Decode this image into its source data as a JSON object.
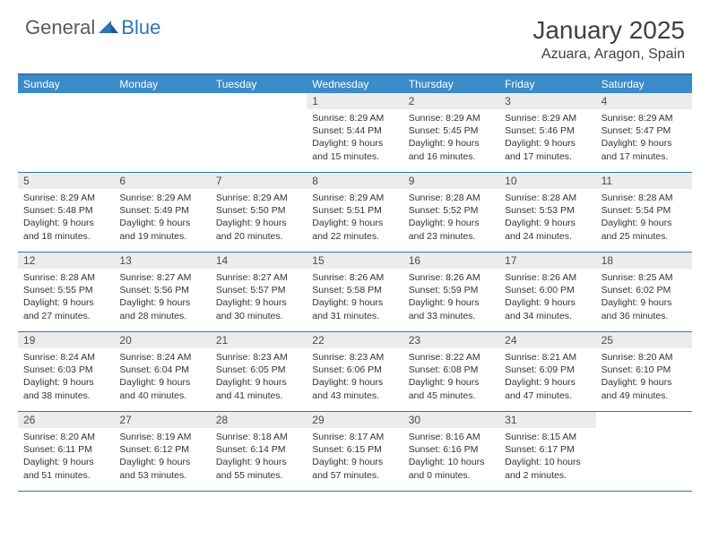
{
  "logo": {
    "general": "General",
    "blue": "Blue"
  },
  "title": "January 2025",
  "location": "Azuara, Aragon, Spain",
  "colors": {
    "header_bg": "#3b8bc9",
    "header_border": "#2e75b6",
    "row_border": "#2e75b6",
    "daynum_bg": "#ececec",
    "text": "#333333",
    "title_text": "#404040",
    "logo_gray": "#5a5a5a",
    "logo_blue": "#2e75b6"
  },
  "day_names": [
    "Sunday",
    "Monday",
    "Tuesday",
    "Wednesday",
    "Thursday",
    "Friday",
    "Saturday"
  ],
  "weeks": [
    [
      {
        "n": "",
        "sunrise": "",
        "sunset": "",
        "daylight": ""
      },
      {
        "n": "",
        "sunrise": "",
        "sunset": "",
        "daylight": ""
      },
      {
        "n": "",
        "sunrise": "",
        "sunset": "",
        "daylight": ""
      },
      {
        "n": "1",
        "sunrise": "Sunrise: 8:29 AM",
        "sunset": "Sunset: 5:44 PM",
        "daylight": "Daylight: 9 hours and 15 minutes."
      },
      {
        "n": "2",
        "sunrise": "Sunrise: 8:29 AM",
        "sunset": "Sunset: 5:45 PM",
        "daylight": "Daylight: 9 hours and 16 minutes."
      },
      {
        "n": "3",
        "sunrise": "Sunrise: 8:29 AM",
        "sunset": "Sunset: 5:46 PM",
        "daylight": "Daylight: 9 hours and 17 minutes."
      },
      {
        "n": "4",
        "sunrise": "Sunrise: 8:29 AM",
        "sunset": "Sunset: 5:47 PM",
        "daylight": "Daylight: 9 hours and 17 minutes."
      }
    ],
    [
      {
        "n": "5",
        "sunrise": "Sunrise: 8:29 AM",
        "sunset": "Sunset: 5:48 PM",
        "daylight": "Daylight: 9 hours and 18 minutes."
      },
      {
        "n": "6",
        "sunrise": "Sunrise: 8:29 AM",
        "sunset": "Sunset: 5:49 PM",
        "daylight": "Daylight: 9 hours and 19 minutes."
      },
      {
        "n": "7",
        "sunrise": "Sunrise: 8:29 AM",
        "sunset": "Sunset: 5:50 PM",
        "daylight": "Daylight: 9 hours and 20 minutes."
      },
      {
        "n": "8",
        "sunrise": "Sunrise: 8:29 AM",
        "sunset": "Sunset: 5:51 PM",
        "daylight": "Daylight: 9 hours and 22 minutes."
      },
      {
        "n": "9",
        "sunrise": "Sunrise: 8:28 AM",
        "sunset": "Sunset: 5:52 PM",
        "daylight": "Daylight: 9 hours and 23 minutes."
      },
      {
        "n": "10",
        "sunrise": "Sunrise: 8:28 AM",
        "sunset": "Sunset: 5:53 PM",
        "daylight": "Daylight: 9 hours and 24 minutes."
      },
      {
        "n": "11",
        "sunrise": "Sunrise: 8:28 AM",
        "sunset": "Sunset: 5:54 PM",
        "daylight": "Daylight: 9 hours and 25 minutes."
      }
    ],
    [
      {
        "n": "12",
        "sunrise": "Sunrise: 8:28 AM",
        "sunset": "Sunset: 5:55 PM",
        "daylight": "Daylight: 9 hours and 27 minutes."
      },
      {
        "n": "13",
        "sunrise": "Sunrise: 8:27 AM",
        "sunset": "Sunset: 5:56 PM",
        "daylight": "Daylight: 9 hours and 28 minutes."
      },
      {
        "n": "14",
        "sunrise": "Sunrise: 8:27 AM",
        "sunset": "Sunset: 5:57 PM",
        "daylight": "Daylight: 9 hours and 30 minutes."
      },
      {
        "n": "15",
        "sunrise": "Sunrise: 8:26 AM",
        "sunset": "Sunset: 5:58 PM",
        "daylight": "Daylight: 9 hours and 31 minutes."
      },
      {
        "n": "16",
        "sunrise": "Sunrise: 8:26 AM",
        "sunset": "Sunset: 5:59 PM",
        "daylight": "Daylight: 9 hours and 33 minutes."
      },
      {
        "n": "17",
        "sunrise": "Sunrise: 8:26 AM",
        "sunset": "Sunset: 6:00 PM",
        "daylight": "Daylight: 9 hours and 34 minutes."
      },
      {
        "n": "18",
        "sunrise": "Sunrise: 8:25 AM",
        "sunset": "Sunset: 6:02 PM",
        "daylight": "Daylight: 9 hours and 36 minutes."
      }
    ],
    [
      {
        "n": "19",
        "sunrise": "Sunrise: 8:24 AM",
        "sunset": "Sunset: 6:03 PM",
        "daylight": "Daylight: 9 hours and 38 minutes."
      },
      {
        "n": "20",
        "sunrise": "Sunrise: 8:24 AM",
        "sunset": "Sunset: 6:04 PM",
        "daylight": "Daylight: 9 hours and 40 minutes."
      },
      {
        "n": "21",
        "sunrise": "Sunrise: 8:23 AM",
        "sunset": "Sunset: 6:05 PM",
        "daylight": "Daylight: 9 hours and 41 minutes."
      },
      {
        "n": "22",
        "sunrise": "Sunrise: 8:23 AM",
        "sunset": "Sunset: 6:06 PM",
        "daylight": "Daylight: 9 hours and 43 minutes."
      },
      {
        "n": "23",
        "sunrise": "Sunrise: 8:22 AM",
        "sunset": "Sunset: 6:08 PM",
        "daylight": "Daylight: 9 hours and 45 minutes."
      },
      {
        "n": "24",
        "sunrise": "Sunrise: 8:21 AM",
        "sunset": "Sunset: 6:09 PM",
        "daylight": "Daylight: 9 hours and 47 minutes."
      },
      {
        "n": "25",
        "sunrise": "Sunrise: 8:20 AM",
        "sunset": "Sunset: 6:10 PM",
        "daylight": "Daylight: 9 hours and 49 minutes."
      }
    ],
    [
      {
        "n": "26",
        "sunrise": "Sunrise: 8:20 AM",
        "sunset": "Sunset: 6:11 PM",
        "daylight": "Daylight: 9 hours and 51 minutes."
      },
      {
        "n": "27",
        "sunrise": "Sunrise: 8:19 AM",
        "sunset": "Sunset: 6:12 PM",
        "daylight": "Daylight: 9 hours and 53 minutes."
      },
      {
        "n": "28",
        "sunrise": "Sunrise: 8:18 AM",
        "sunset": "Sunset: 6:14 PM",
        "daylight": "Daylight: 9 hours and 55 minutes."
      },
      {
        "n": "29",
        "sunrise": "Sunrise: 8:17 AM",
        "sunset": "Sunset: 6:15 PM",
        "daylight": "Daylight: 9 hours and 57 minutes."
      },
      {
        "n": "30",
        "sunrise": "Sunrise: 8:16 AM",
        "sunset": "Sunset: 6:16 PM",
        "daylight": "Daylight: 10 hours and 0 minutes."
      },
      {
        "n": "31",
        "sunrise": "Sunrise: 8:15 AM",
        "sunset": "Sunset: 6:17 PM",
        "daylight": "Daylight: 10 hours and 2 minutes."
      },
      {
        "n": "",
        "sunrise": "",
        "sunset": "",
        "daylight": ""
      }
    ]
  ]
}
